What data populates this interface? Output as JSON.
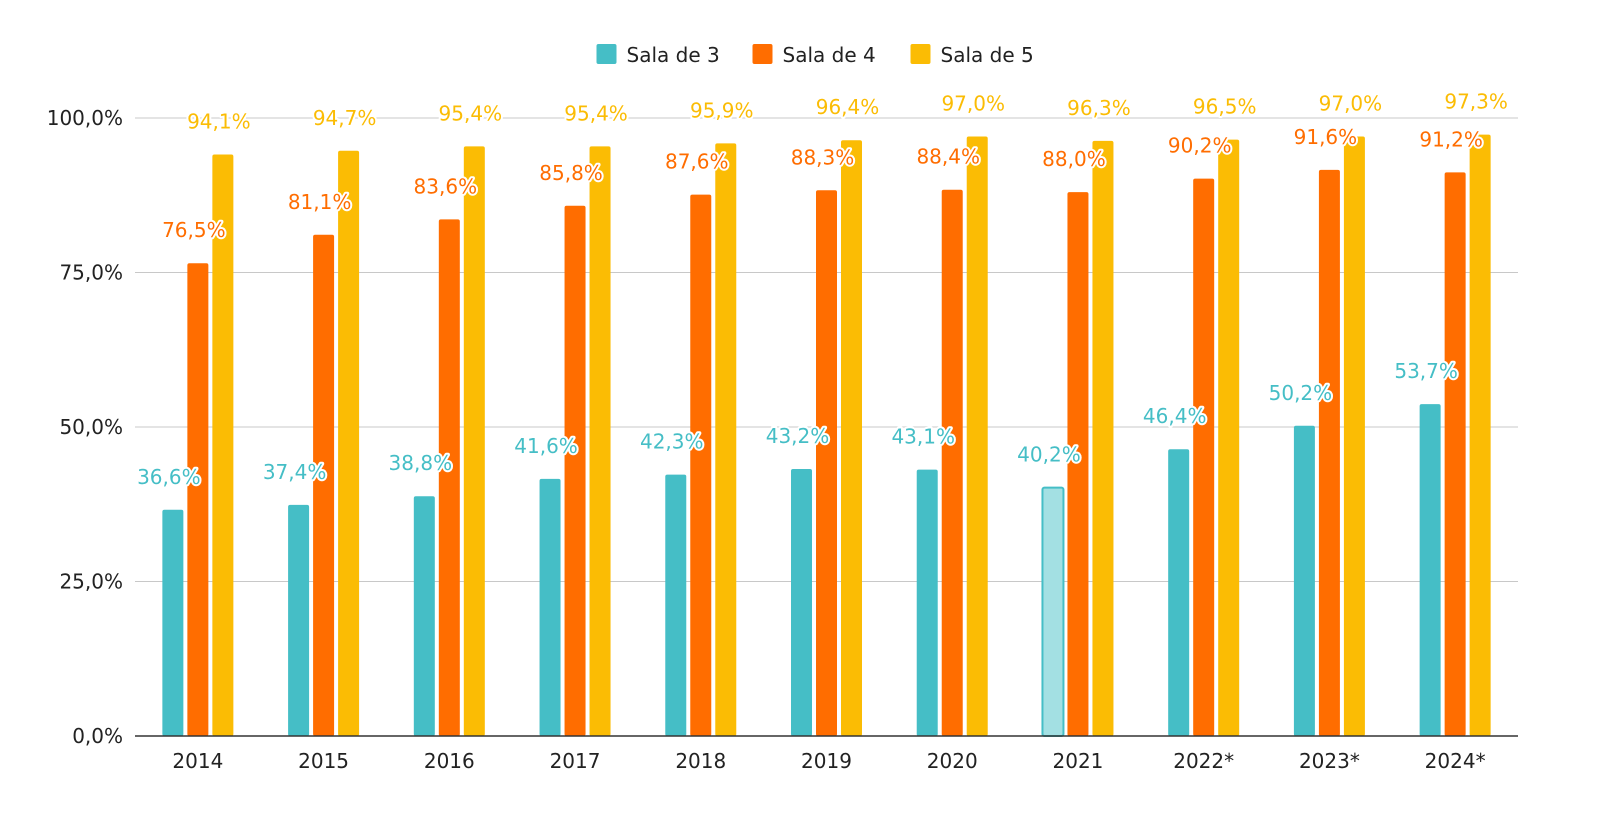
{
  "chart_data": {
    "type": "bar",
    "categories": [
      "2014",
      "2015",
      "2016",
      "2017",
      "2018",
      "2019",
      "2020",
      "2021",
      "2022*",
      "2023*",
      "2024*"
    ],
    "series": [
      {
        "name": "Sala de 3",
        "color": "#45bec6",
        "values": [
          36.6,
          37.4,
          38.8,
          41.6,
          42.3,
          43.2,
          43.1,
          40.2,
          46.4,
          50.2,
          53.7
        ],
        "labels": [
          "36,6%",
          "37,4%",
          "38,8%",
          "41,6%",
          "42,3%",
          "43,2%",
          "43,1%",
          "40,2%",
          "46,4%",
          "50,2%",
          "53,7%"
        ],
        "highlighted_index": 7,
        "highlight_color": "#a3e0e3"
      },
      {
        "name": "Sala de 4",
        "color": "#ff6d00",
        "values": [
          76.5,
          81.1,
          83.6,
          85.8,
          87.6,
          88.3,
          88.4,
          88.0,
          90.2,
          91.6,
          91.2
        ],
        "labels": [
          "76,5%",
          "81,1%",
          "83,6%",
          "85,8%",
          "87,6%",
          "88,3%",
          "88,4%",
          "88,0%",
          "90,2%",
          "91,6%",
          "91,2%"
        ]
      },
      {
        "name": "Sala de 5",
        "color": "#fbbc04",
        "values": [
          94.1,
          94.7,
          95.4,
          95.4,
          95.9,
          96.4,
          97.0,
          96.3,
          96.5,
          97.0,
          97.3
        ],
        "labels": [
          "94,1%",
          "94,7%",
          "95,4%",
          "95,4%",
          "95,9%",
          "96,4%",
          "97,0%",
          "96,3%",
          "96,5%",
          "97,0%",
          "97,3%"
        ]
      }
    ],
    "ylim": [
      0,
      100
    ],
    "yticks": [
      0,
      25,
      50,
      75,
      100
    ],
    "ytick_labels": [
      "0,0%",
      "25,0%",
      "50,0%",
      "75,0%",
      "100,0%"
    ],
    "grid": true,
    "legend_position": "top-center",
    "title": "",
    "xlabel": "",
    "ylabel": ""
  }
}
